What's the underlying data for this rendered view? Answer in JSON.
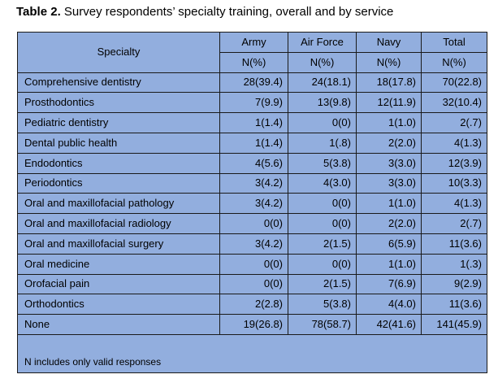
{
  "caption": {
    "label": "Table 2.",
    "text": " Survey respondents’ specialty training, overall and by service"
  },
  "header": {
    "specialty": "Specialty",
    "columns": [
      "Army",
      "Air Force",
      "Navy",
      "Total"
    ],
    "unit": "N(%)"
  },
  "rows": [
    {
      "specialty": "Comprehensive dentistry",
      "army": "28(39.4)",
      "air_force": "24(18.1)",
      "navy": "18(17.8)",
      "total": "70(22.8)"
    },
    {
      "specialty": "Prosthodontics",
      "army": "7(9.9)",
      "air_force": "13(9.8)",
      "navy": "12(11.9)",
      "total": "32(10.4)"
    },
    {
      "specialty": "Pediatric dentistry",
      "army": "1(1.4)",
      "air_force": "0(0)",
      "navy": "1(1.0)",
      "total": "2(.7)"
    },
    {
      "specialty": "Dental public health",
      "army": "1(1.4)",
      "air_force": "1(.8)",
      "navy": "2(2.0)",
      "total": "4(1.3)"
    },
    {
      "specialty": "Endodontics",
      "army": "4(5.6)",
      "air_force": "5(3.8)",
      "navy": "3(3.0)",
      "total": "12(3.9)"
    },
    {
      "specialty": "Periodontics",
      "army": "3(4.2)",
      "air_force": "4(3.0)",
      "navy": "3(3.0)",
      "total": "10(3.3)"
    },
    {
      "specialty": "Oral and maxillofacial pathology",
      "army": "3(4.2)",
      "air_force": "0(0)",
      "navy": "1(1.0)",
      "total": "4(1.3)"
    },
    {
      "specialty": "Oral and maxillofacial radiology",
      "army": "0(0)",
      "air_force": "0(0)",
      "navy": "2(2.0)",
      "total": "2(.7)"
    },
    {
      "specialty": "Oral and maxillofacial surgery",
      "army": "3(4.2)",
      "air_force": "2(1.5)",
      "navy": "6(5.9)",
      "total": "11(3.6)"
    },
    {
      "specialty": "Oral medicine",
      "army": "0(0)",
      "air_force": "0(0)",
      "navy": "1(1.0)",
      "total": "1(.3)"
    },
    {
      "specialty": "Orofacial pain",
      "army": "0(0)",
      "air_force": "2(1.5)",
      "navy": "7(6.9)",
      "total": "9(2.9)"
    },
    {
      "specialty": "Orthodontics",
      "army": "2(2.8)",
      "air_force": "5(3.8)",
      "navy": "4(4.0)",
      "total": "11(3.6)"
    },
    {
      "specialty": "None",
      "army": "19(26.8)",
      "air_force": "78(58.7)",
      "navy": "42(41.6)",
      "total": "141(45.9)"
    }
  ],
  "footnote": "N includes only valid responses",
  "colors": {
    "table_background": "#92aede",
    "border": "#1a1a1a"
  }
}
